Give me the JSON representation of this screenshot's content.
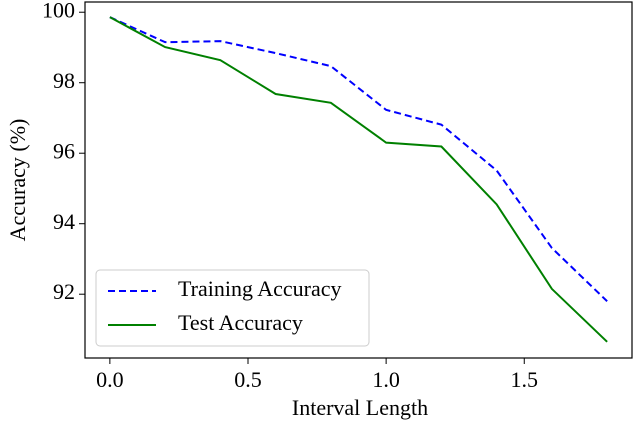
{
  "chart_data": {
    "type": "line",
    "x_label": "Interval Length",
    "y_label": "Accuracy (%)",
    "x": [
      0.0,
      0.2,
      0.4,
      0.6,
      0.8,
      1.0,
      1.2,
      1.4,
      1.6,
      1.8
    ],
    "series": [
      {
        "name": "Training Accuracy",
        "color": "#0000ff",
        "dash": true,
        "values": [
          99.86,
          99.15,
          99.18,
          98.84,
          98.47,
          97.23,
          96.81,
          95.51,
          93.31,
          91.8
        ]
      },
      {
        "name": "Test Accuracy",
        "color": "#008000",
        "dash": false,
        "values": [
          99.86,
          99.01,
          98.64,
          97.68,
          97.43,
          96.3,
          96.19,
          94.55,
          92.15,
          90.65
        ]
      }
    ],
    "xlim": [
      -0.09,
      1.89
    ],
    "xticks": [
      {
        "value": 0,
        "label": "0.0"
      },
      {
        "value": 0.5,
        "label": "0.5"
      },
      {
        "value": 1,
        "label": "1.0"
      },
      {
        "value": 1.5,
        "label": "1.5"
      }
    ],
    "ylim": [
      90.19,
      100.29
    ],
    "yticks": [
      92,
      94,
      96,
      98,
      100
    ],
    "legend": "lower left"
  }
}
